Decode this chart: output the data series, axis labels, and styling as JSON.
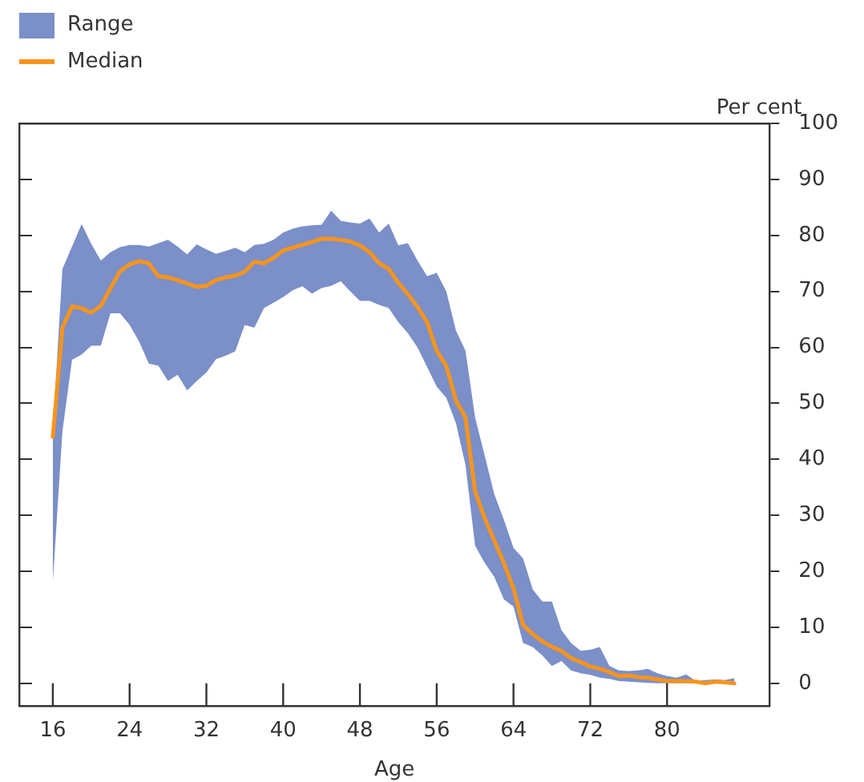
{
  "chart_data": {
    "type": "line",
    "xlabel": "Age",
    "ylabel": "Per cent",
    "annotations": [
      "Range"
    ],
    "x": [
      16,
      17,
      18,
      19,
      20,
      21,
      22,
      23,
      24,
      25,
      26,
      27,
      28,
      29,
      30,
      31,
      32,
      33,
      34,
      35,
      36,
      37,
      38,
      39,
      40,
      41,
      42,
      43,
      44,
      45,
      46,
      47,
      48,
      49,
      50,
      51,
      52,
      53,
      54,
      55,
      56,
      57,
      58,
      59,
      60,
      61,
      62,
      63,
      64,
      65,
      66,
      67,
      68,
      69,
      70,
      71,
      72,
      73,
      74,
      75,
      76,
      77,
      78,
      79,
      80,
      81,
      82,
      83,
      84,
      85,
      86,
      87
    ],
    "series": [
      {
        "name": "Median",
        "type": "line",
        "color": "#f7941d",
        "values": [
          44,
          63.5,
          67.3,
          67,
          66.2,
          67.4,
          70.5,
          73.6,
          74.8,
          75.4,
          75,
          72.7,
          72.5,
          72,
          71.4,
          70.8,
          71,
          72,
          72.5,
          72.8,
          73.5,
          75.3,
          75,
          76,
          77.3,
          77.8,
          78.3,
          78.8,
          79.4,
          79.4,
          79.2,
          78.9,
          78.2,
          77,
          75,
          74,
          71.5,
          69.5,
          67.2,
          64.5,
          59.4,
          56.7,
          50.5,
          47.5,
          34.3,
          29.5,
          25.5,
          21.5,
          17,
          10.4,
          8.8,
          7.5,
          6.5,
          5.8,
          4.5,
          3.8,
          3,
          2.6,
          2,
          1.3,
          1.4,
          1.1,
          1,
          0.7,
          0.4,
          0.4,
          0.4,
          0.3,
          0,
          0.3,
          0.2,
          0
        ],
        "lower": [
          18,
          45,
          57.8,
          58.7,
          60.3,
          60.3,
          66.1,
          66.1,
          64,
          61,
          57.1,
          56.7,
          54,
          55.1,
          52.3,
          54,
          55.5,
          57.9,
          58.5,
          59.3,
          64,
          63.5,
          67,
          68,
          69,
          70.2,
          70.9,
          69.6,
          70.6,
          71,
          71.8,
          70,
          68.3,
          68.3,
          67.6,
          67,
          64.5,
          62.5,
          60,
          56.5,
          53,
          51,
          46.5,
          39,
          24.6,
          21.5,
          19,
          15,
          13.7,
          7.2,
          6.5,
          5,
          3.1,
          4,
          2.3,
          1.8,
          1.5,
          1,
          0.8,
          0.4,
          0.3,
          0.2,
          0.1,
          0,
          0,
          0,
          0,
          0,
          0,
          0,
          0,
          0
        ],
        "upper": [
          45,
          74,
          78,
          82,
          78.5,
          75.5,
          77,
          77.9,
          78.3,
          78.3,
          78,
          78.6,
          79.2,
          78,
          76.6,
          78.4,
          77.5,
          76.7,
          77.2,
          77.8,
          77,
          78.3,
          78.5,
          79.2,
          80.5,
          81.2,
          81.6,
          81.8,
          81.9,
          84.4,
          82.6,
          82.3,
          82.1,
          83,
          80.5,
          82.1,
          78.2,
          78.6,
          75.5,
          72.7,
          73.3,
          70,
          63,
          59.4,
          47.5,
          40.7,
          33.8,
          29.2,
          24.2,
          22.3,
          16.8,
          14.6,
          14.6,
          9.5,
          7.2,
          5.8,
          6,
          6.5,
          3.1,
          2.3,
          2.2,
          2.3,
          2.6,
          1.8,
          1.3,
          1,
          1.6,
          0.4,
          0.6,
          0.7,
          0.6,
          0.9
        ]
      }
    ],
    "xlim": [
      12.5,
      90.7
    ],
    "xticks": [
      16,
      24,
      32,
      40,
      48,
      56,
      64,
      72,
      80
    ],
    "ylim": [
      -4,
      100
    ],
    "yticks": [
      0,
      10,
      20,
      30,
      40,
      50,
      60,
      70,
      80,
      90,
      100
    ],
    "grid": false,
    "legend": "top left",
    "marker": "none",
    "line_style": "solid"
  }
}
